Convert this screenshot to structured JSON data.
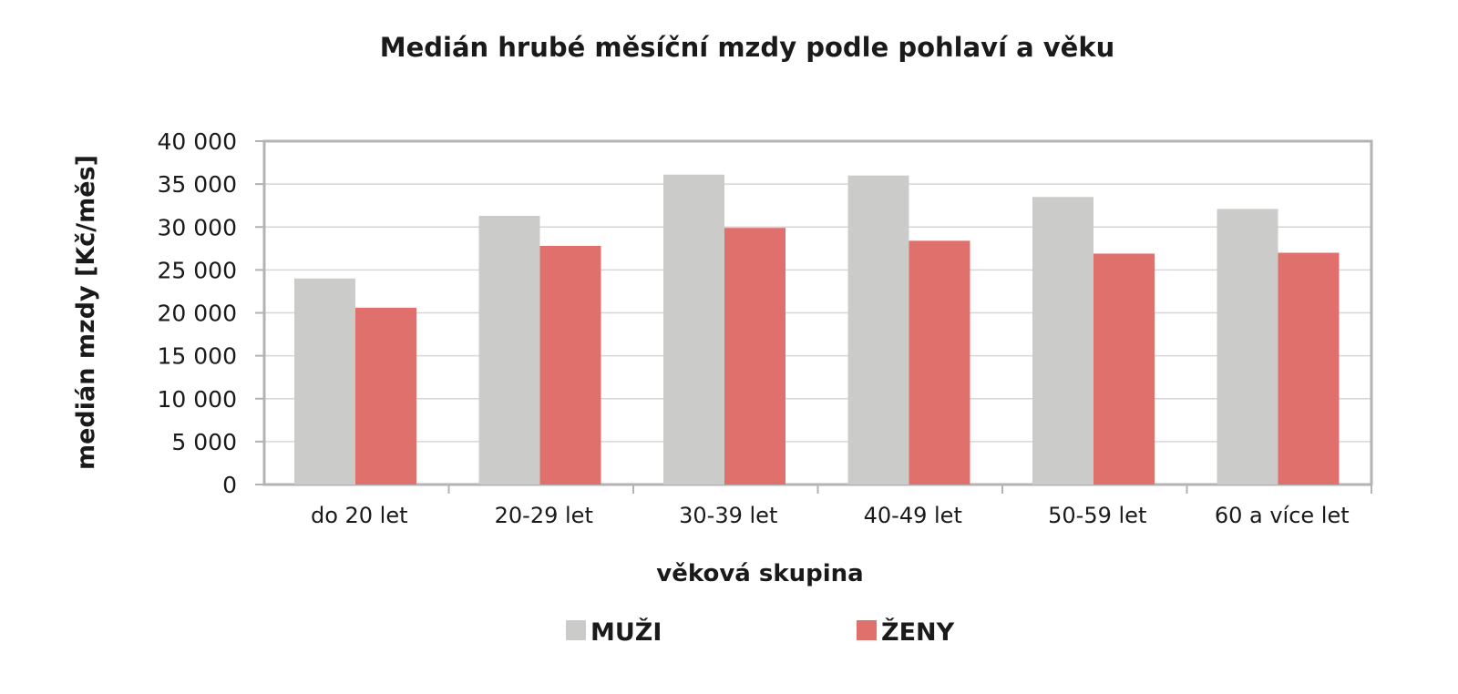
{
  "chart_data": {
    "type": "bar",
    "title": "Medián hrubé měsíční mzdy podle pohlaví a věku",
    "xlabel": "věková skupina",
    "ylabel": "medián mzdy [Kč/měs]",
    "categories": [
      "do 20 let",
      "20-29 let",
      "30-39 let",
      "40-49 let",
      "50-59 let",
      "60 a více let"
    ],
    "series": [
      {
        "name": "MUŽI",
        "color": "#cbcbc9",
        "values": [
          24000,
          31300,
          36100,
          36000,
          33500,
          32100
        ]
      },
      {
        "name": "ŽENY",
        "color": "#e0706c",
        "values": [
          20600,
          27800,
          29900,
          28400,
          26900,
          27000
        ]
      }
    ],
    "ylim": [
      0,
      40000
    ],
    "yticks": [
      0,
      5000,
      10000,
      15000,
      20000,
      25000,
      30000,
      35000,
      40000
    ],
    "ytick_labels": [
      "0",
      "5 000",
      "10 000",
      "15 000",
      "20 000",
      "25 000",
      "30 000",
      "35 000",
      "40 000"
    ],
    "grid": true,
    "legend_position": "bottom"
  }
}
